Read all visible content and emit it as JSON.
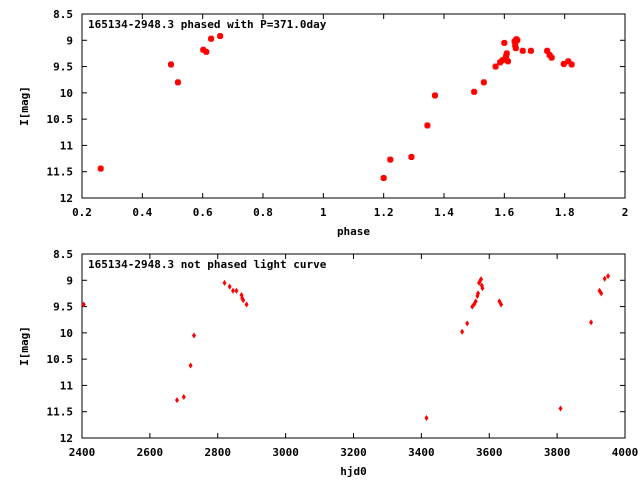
{
  "chart_data": [
    {
      "type": "scatter",
      "title": "165134-2948.3 phased with P=371.0day",
      "xlabel": "phase",
      "ylabel": "I[mag]",
      "xlim": [
        0.2,
        2.0
      ],
      "ylim": [
        8.5,
        12
      ],
      "y_inverted": true,
      "xticks": [
        0.2,
        0.4,
        0.6,
        0.8,
        1.0,
        1.2,
        1.4,
        1.6,
        1.8,
        2.0
      ],
      "xtick_labels": [
        "0.2",
        "0.4",
        "0.6",
        "0.8",
        "1",
        "1.2",
        "1.4",
        "1.6",
        "1.8",
        "2"
      ],
      "yticks": [
        8.5,
        9,
        9.5,
        10,
        10.5,
        11,
        11.5,
        12
      ],
      "ytick_labels": [
        "8.5",
        "9",
        "9.5",
        "10",
        "10.5",
        "11",
        "11.5",
        "12"
      ],
      "marker_color": "#ff0000",
      "series": [
        {
          "name": "phased",
          "points": [
            [
              0.262,
              11.44
            ],
            [
              0.495,
              9.46
            ],
            [
              0.518,
              9.8
            ],
            [
              0.602,
              9.18
            ],
            [
              0.612,
              9.22
            ],
            [
              0.628,
              8.97
            ],
            [
              0.658,
              8.92
            ],
            [
              1.2,
              11.62
            ],
            [
              1.222,
              11.27
            ],
            [
              1.292,
              11.22
            ],
            [
              1.345,
              10.62
            ],
            [
              1.37,
              10.05
            ],
            [
              1.5,
              9.98
            ],
            [
              1.532,
              9.8
            ],
            [
              1.571,
              9.5
            ],
            [
              1.586,
              9.42
            ],
            [
              1.594,
              9.38
            ],
            [
              1.6,
              9.05
            ],
            [
              1.603,
              9.35
            ],
            [
              1.606,
              9.3
            ],
            [
              1.608,
              9.25
            ],
            [
              1.612,
              9.4
            ],
            [
              1.634,
              9.02
            ],
            [
              1.636,
              9.1
            ],
            [
              1.638,
              9.15
            ],
            [
              1.64,
              8.98
            ],
            [
              1.643,
              9.0
            ],
            [
              1.661,
              9.2
            ],
            [
              1.688,
              9.2
            ],
            [
              1.742,
              9.2
            ],
            [
              1.75,
              9.28
            ],
            [
              1.757,
              9.33
            ],
            [
              1.797,
              9.45
            ],
            [
              1.812,
              9.4
            ],
            [
              1.823,
              9.46
            ]
          ]
        }
      ]
    },
    {
      "type": "scatter",
      "title": "165134-2948.3 not phased light curve",
      "xlabel": "hjd0",
      "ylabel": "I[mag]",
      "xlim": [
        2400,
        4000
      ],
      "ylim": [
        8.5,
        12
      ],
      "y_inverted": true,
      "xticks": [
        2400,
        2600,
        2800,
        3000,
        3200,
        3400,
        3600,
        3800,
        4000
      ],
      "xtick_labels": [
        "2400",
        "2600",
        "2800",
        "3000",
        "3200",
        "3400",
        "3600",
        "3800",
        "4000"
      ],
      "yticks": [
        8.5,
        9,
        9.5,
        10,
        10.5,
        11,
        11.5,
        12
      ],
      "ytick_labels": [
        "8.5",
        "9",
        "9.5",
        "10",
        "10.5",
        "11",
        "11.5",
        "12"
      ],
      "marker_color": "#ff0000",
      "series": [
        {
          "name": "unphased",
          "points": [
            [
              2405,
              9.46
            ],
            [
              2680,
              11.28
            ],
            [
              2700,
              11.22
            ],
            [
              2720,
              10.62
            ],
            [
              2730,
              10.05
            ],
            [
              2820,
              9.05
            ],
            [
              2835,
              9.12
            ],
            [
              2845,
              9.2
            ],
            [
              2855,
              9.2
            ],
            [
              2870,
              9.28
            ],
            [
              2872,
              9.34
            ],
            [
              2875,
              9.38
            ],
            [
              2885,
              9.46
            ],
            [
              3415,
              11.62
            ],
            [
              3520,
              9.98
            ],
            [
              3535,
              9.82
            ],
            [
              3550,
              9.5
            ],
            [
              3556,
              9.45
            ],
            [
              3560,
              9.4
            ],
            [
              3565,
              9.3
            ],
            [
              3567,
              9.25
            ],
            [
              3570,
              9.05
            ],
            [
              3574,
              9.0
            ],
            [
              3576,
              8.98
            ],
            [
              3578,
              9.1
            ],
            [
              3580,
              9.15
            ],
            [
              3630,
              9.4
            ],
            [
              3635,
              9.46
            ],
            [
              3810,
              11.44
            ],
            [
              3900,
              9.8
            ],
            [
              3925,
              9.2
            ],
            [
              3930,
              9.25
            ],
            [
              3940,
              8.97
            ],
            [
              3950,
              8.92
            ]
          ]
        }
      ]
    }
  ]
}
